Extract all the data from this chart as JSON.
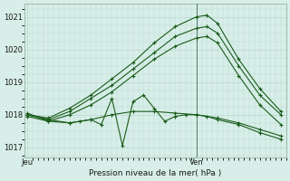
{
  "background_color": "#d8eee8",
  "grid_color": "#b8d8d0",
  "line_color": "#1a5c1a",
  "title": "Pression niveau de la mer( hPa )",
  "xlabel_jeu": "Jeu",
  "xlabel_ven": "Ven",
  "ylim": [
    1016.7,
    1021.4
  ],
  "yticks": [
    1017,
    1018,
    1019,
    1020,
    1021
  ],
  "ven_x": 16,
  "jeu_x": 0,
  "xlim": [
    -0.3,
    24.5
  ],
  "series": [
    {
      "x": [
        0,
        2,
        4,
        6,
        8,
        10,
        12,
        14,
        16,
        17,
        18,
        20,
        22,
        24
      ],
      "y": [
        1018.0,
        1017.9,
        1018.2,
        1018.6,
        1019.1,
        1019.6,
        1020.2,
        1020.7,
        1021.0,
        1021.05,
        1020.8,
        1019.7,
        1018.8,
        1018.1
      ]
    },
    {
      "x": [
        0,
        2,
        4,
        6,
        8,
        10,
        12,
        14,
        16,
        17,
        18,
        20,
        22,
        24
      ],
      "y": [
        1018.0,
        1017.85,
        1018.1,
        1018.5,
        1018.9,
        1019.4,
        1019.9,
        1020.4,
        1020.65,
        1020.7,
        1020.5,
        1019.5,
        1018.6,
        1018.0
      ]
    },
    {
      "x": [
        0,
        2,
        4,
        6,
        8,
        10,
        12,
        14,
        16,
        17,
        18,
        20,
        22,
        24
      ],
      "y": [
        1017.95,
        1017.8,
        1018.0,
        1018.3,
        1018.7,
        1019.2,
        1019.7,
        1020.1,
        1020.35,
        1020.4,
        1020.2,
        1019.2,
        1018.3,
        1017.7
      ]
    },
    {
      "x": [
        0,
        2,
        4,
        6,
        8,
        10,
        12,
        14,
        16,
        18,
        20,
        22,
        24
      ],
      "y": [
        1018.0,
        1017.85,
        1017.75,
        1017.85,
        1018.0,
        1018.1,
        1018.1,
        1018.05,
        1018.0,
        1017.9,
        1017.75,
        1017.55,
        1017.35
      ]
    },
    {
      "x": [
        0,
        2,
        4,
        5,
        6,
        7,
        8,
        9,
        10,
        11,
        12,
        13,
        14,
        15,
        16,
        17,
        18,
        20,
        22,
        24
      ],
      "y": [
        1018.05,
        1017.8,
        1017.75,
        1017.8,
        1017.85,
        1017.7,
        1018.5,
        1017.05,
        1018.4,
        1018.6,
        1018.2,
        1017.8,
        1017.95,
        1018.0,
        1018.0,
        1017.95,
        1017.85,
        1017.7,
        1017.45,
        1017.25
      ]
    }
  ]
}
